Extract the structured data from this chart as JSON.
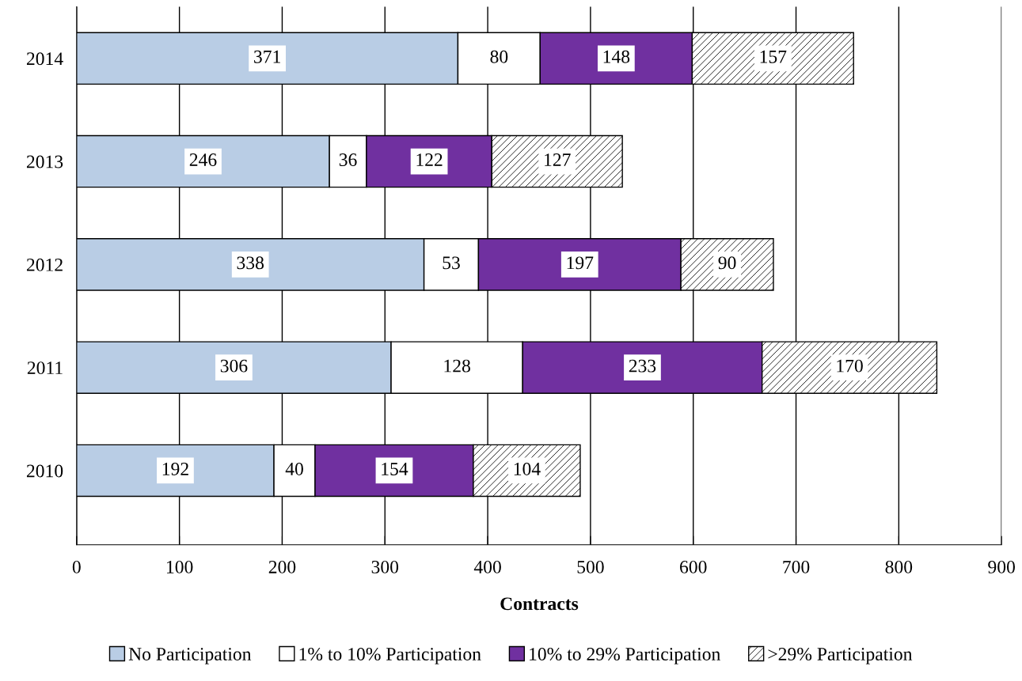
{
  "chart_data": {
    "type": "bar",
    "orientation": "horizontal",
    "stacked": true,
    "xlabel": "Contracts",
    "categories": [
      "2014",
      "2013",
      "2012",
      "2011",
      "2010"
    ],
    "series": [
      {
        "name": "No Participation",
        "color": "#b9cde5",
        "values": [
          371,
          246,
          338,
          306,
          192
        ]
      },
      {
        "name": "1% to 10% Participation",
        "color": "#ffffff",
        "values": [
          80,
          36,
          53,
          128,
          40
        ]
      },
      {
        "name": "10% to 29% Participation",
        "color": "#7030a0",
        "values": [
          148,
          122,
          197,
          233,
          154
        ]
      },
      {
        "name": ">29% Participation",
        "color": "#000000",
        "values": [
          157,
          127,
          90,
          170,
          104
        ]
      }
    ],
    "xlim": [
      0,
      900
    ],
    "xticks": [
      0,
      100,
      200,
      300,
      400,
      500,
      600,
      700,
      800,
      900
    ],
    "grid": "x",
    "legend": "bottom",
    "data_labels": true
  }
}
